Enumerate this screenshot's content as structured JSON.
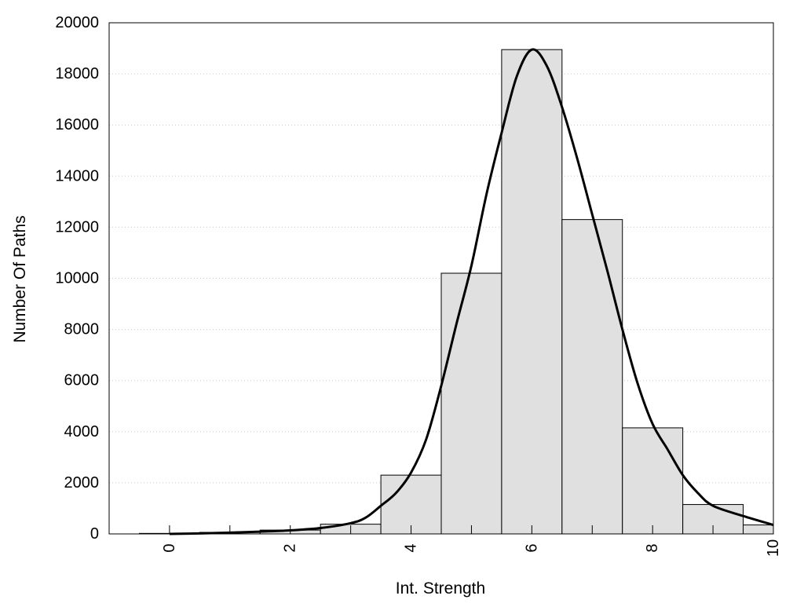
{
  "chart_data": {
    "type": "bar",
    "title": "",
    "xlabel": "Int. Strength",
    "ylabel": "Number Of Paths",
    "xlim": [
      -1,
      10
    ],
    "ylim": [
      0,
      20000
    ],
    "xticks": [
      0,
      2,
      4,
      6,
      8,
      10
    ],
    "yticks": [
      0,
      2000,
      4000,
      6000,
      8000,
      10000,
      12000,
      14000,
      16000,
      18000,
      20000
    ],
    "grid": "horizontal-dotted",
    "legend": "none",
    "bar_color": "#e0e0e0",
    "bar_edge_color": "#000000",
    "curve_color": "#000000",
    "bars": {
      "x": [
        0,
        1,
        2,
        3,
        4,
        5,
        6,
        7,
        8,
        9,
        10
      ],
      "width": 1,
      "values": [
        20,
        60,
        150,
        380,
        2300,
        10200,
        18950,
        12300,
        4150,
        1150,
        350
      ]
    },
    "curve": {
      "x": [
        0,
        0.5,
        1,
        1.5,
        2,
        2.5,
        3,
        3.25,
        3.5,
        3.75,
        4,
        4.25,
        4.5,
        4.75,
        5,
        5.25,
        5.5,
        5.75,
        6,
        6.25,
        6.5,
        6.75,
        7,
        7.25,
        7.5,
        7.75,
        8,
        8.25,
        8.5,
        8.75,
        9,
        9.5,
        10
      ],
      "y": [
        0,
        20,
        50,
        90,
        140,
        230,
        420,
        640,
        1100,
        1600,
        2400,
        3700,
        5800,
        8200,
        10500,
        13300,
        15700,
        17900,
        18950,
        18300,
        16700,
        14700,
        12500,
        10300,
        8000,
        5900,
        4300,
        3300,
        2300,
        1600,
        1100,
        700,
        350
      ]
    }
  }
}
